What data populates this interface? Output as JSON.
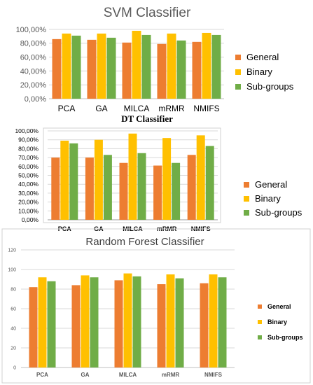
{
  "chart_data": [
    {
      "type": "bar",
      "title": "SVM Classifier",
      "categories": [
        "PCA",
        "GA",
        "MILCA",
        "mRMR",
        "NMIFS"
      ],
      "ylim": [
        0,
        100
      ],
      "yticks": [
        "0,00%",
        "20,00%",
        "40,00%",
        "60,00%",
        "80,00%",
        "100,00%"
      ],
      "grid": true,
      "legend_position": "right",
      "series": [
        {
          "name": "General",
          "values": [
            86,
            85,
            81,
            79,
            82
          ]
        },
        {
          "name": "Binary",
          "values": [
            94,
            94,
            98,
            94,
            95
          ]
        },
        {
          "name": "Sub-groups",
          "values": [
            91,
            88,
            92,
            84,
            92
          ]
        }
      ]
    },
    {
      "type": "bar",
      "title": "DT Classifier",
      "categories": [
        "PCA",
        "GA",
        "MILCA",
        "mRMR",
        "NMIFS"
      ],
      "ylim": [
        0,
        100
      ],
      "yticks": [
        "0,00%",
        "10,00%",
        "20,00%",
        "30,00%",
        "40,00%",
        "50,00%",
        "60,00%",
        "70,00%",
        "80,00%",
        "90,00%",
        "100,00%"
      ],
      "grid": true,
      "legend_position": "right",
      "series": [
        {
          "name": "General",
          "values": [
            70,
            70,
            64,
            61,
            73
          ]
        },
        {
          "name": "Binary",
          "values": [
            89,
            90,
            97,
            92,
            95
          ]
        },
        {
          "name": "Sub-groups",
          "values": [
            86,
            73,
            75,
            64,
            83
          ]
        }
      ]
    },
    {
      "type": "bar",
      "title": "Random Forest Classifier",
      "categories": [
        "PCA",
        "GA",
        "MILCA",
        "mRMR",
        "NMIFS"
      ],
      "ylim": [
        0,
        120
      ],
      "yticks": [
        "0",
        "20",
        "40",
        "60",
        "80",
        "100",
        "120"
      ],
      "grid": true,
      "legend_position": "right",
      "series": [
        {
          "name": "General",
          "values": [
            82,
            84,
            89,
            85,
            86
          ]
        },
        {
          "name": "Binary",
          "values": [
            92,
            94,
            96,
            95,
            95
          ]
        },
        {
          "name": "Sub-groups",
          "values": [
            88,
            92,
            93,
            91,
            92
          ]
        }
      ]
    }
  ],
  "colors": {
    "General": "#ED7D31",
    "Binary": "#FFC000",
    "Sub-groups": "#70AD47",
    "grid": "#d9d9d9",
    "axis_text": "#595959"
  }
}
